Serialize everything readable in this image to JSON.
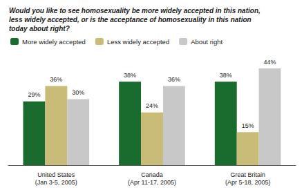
{
  "chart_data": {
    "type": "bar",
    "title": "Would you like to see homosexuality be more widely accepted in this nation,\nless widely accepted, or is the acceptance of homosexuality in this nation\ntoday about right?",
    "categories": [
      "United States\n(Jan 3-5, 2005)",
      "Canada\n(Apr 11-17, 2005)",
      "Great Britain\n(Apr 5-18, 2005)"
    ],
    "series": [
      {
        "name": "More widely accepted",
        "color": "#1a6b2e",
        "values": [
          29,
          38,
          38
        ],
        "value_labels": [
          "29%",
          "38%",
          "38%"
        ]
      },
      {
        "name": "Less widely accepted",
        "color": "#c8bc78",
        "values": [
          36,
          24,
          15
        ],
        "value_labels": [
          "36%",
          "24%",
          "15%"
        ]
      },
      {
        "name": "About right",
        "color": "#c8c8c8",
        "values": [
          30,
          36,
          44
        ],
        "value_labels": [
          "30%",
          "36%",
          "44%"
        ]
      }
    ],
    "ylim": [
      0,
      50
    ],
    "grid": false,
    "legend": "upper left",
    "data_labels": true,
    "tick_labels": "x"
  }
}
